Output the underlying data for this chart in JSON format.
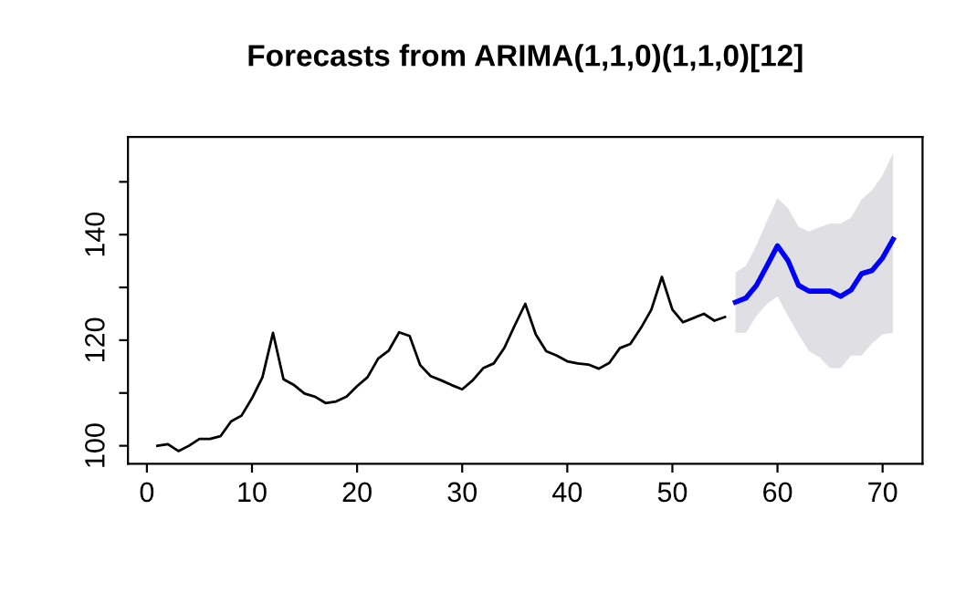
{
  "chart_data": {
    "type": "line",
    "title": "Forecasts from ARIMA(1,1,0)(1,1,0)[12]",
    "series": [
      {
        "color": "#000000",
        "x": [
          1,
          2,
          3,
          4,
          5,
          6,
          7,
          8,
          9,
          10,
          11,
          12,
          13,
          14,
          15,
          16,
          17,
          18,
          19,
          20,
          21,
          22,
          23,
          24,
          25,
          26,
          27,
          28,
          29,
          30,
          31,
          32,
          33,
          34,
          35,
          36,
          37,
          38,
          39,
          40,
          41,
          42,
          43,
          44,
          45,
          46,
          47,
          48,
          49,
          50,
          51,
          52,
          53,
          54,
          55
        ],
        "values": [
          100,
          100.3,
          99,
          100,
          101.3,
          101.3,
          101.8,
          104.6,
          105.7,
          109,
          113,
          121.4,
          112.6,
          111.5,
          109.9,
          109.3,
          108.1,
          108.4,
          109.3,
          111.3,
          113,
          116.5,
          118,
          121.5,
          120.8,
          115.3,
          113.2,
          112.4,
          111.5,
          110.7,
          112.4,
          114.7,
          115.6,
          118.5,
          122.8,
          126.9,
          121.1,
          117.9,
          117.1,
          116,
          115.6,
          115.4,
          114.6,
          115.7,
          118.5,
          119.3,
          122.3,
          125.8,
          132,
          125.8,
          123.4,
          124.2,
          125,
          123.7,
          124.4
        ]
      },
      {
        "color": "#0000ff",
        "x": [
          56,
          57,
          58,
          59,
          60,
          61,
          62,
          63,
          64,
          65,
          66,
          67,
          68,
          69,
          70,
          71
        ],
        "values": [
          127.2,
          128,
          130.4,
          134.1,
          137.9,
          135.1,
          130.4,
          129.3,
          129.3,
          129.3,
          128.3,
          129.5,
          132.6,
          133.2,
          135.6,
          139.1
        ],
        "lower": [
          121.4,
          121.4,
          124.6,
          126.9,
          128.3,
          124.6,
          121.1,
          117.9,
          116.8,
          114.7,
          114.7,
          117.1,
          117.1,
          119.4,
          121.1,
          121.4
        ],
        "upper": [
          132.8,
          134.1,
          138,
          142.6,
          146.9,
          145,
          141.5,
          140.6,
          141.4,
          142.1,
          142.1,
          143.2,
          146.7,
          148.4,
          151.3,
          155.4
        ]
      }
    ],
    "xlim": [
      -1.8,
      73.8
    ],
    "xticks": [
      0,
      10,
      20,
      30,
      40,
      50,
      60,
      70
    ],
    "ylim": [
      96.6,
      158.5
    ],
    "yticks": [
      100,
      {
        "value": 110,
        "label": null
      },
      120,
      {
        "value": 130,
        "label": null
      },
      140,
      {
        "value": 150,
        "label": null
      }
    ],
    "grid": false,
    "legend": false,
    "marker": "none",
    "line_style": "solid"
  }
}
